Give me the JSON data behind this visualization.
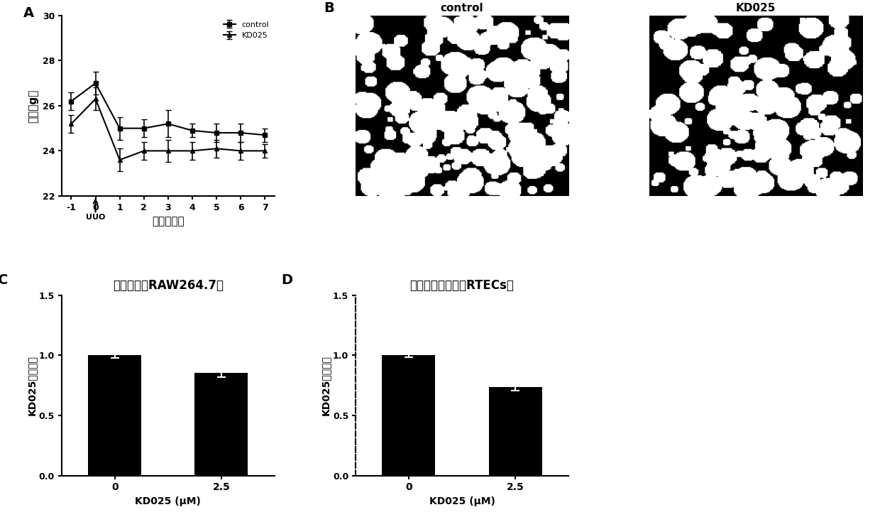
{
  "panel_A": {
    "label": "A",
    "x": [
      -1,
      0,
      1,
      2,
      3,
      4,
      5,
      6,
      7
    ],
    "control_y": [
      26.2,
      27.0,
      25.0,
      25.0,
      25.2,
      24.9,
      24.8,
      24.8,
      24.7
    ],
    "control_err": [
      0.4,
      0.5,
      0.5,
      0.4,
      0.6,
      0.3,
      0.4,
      0.4,
      0.3
    ],
    "kd025_y": [
      25.2,
      26.3,
      23.6,
      24.0,
      24.0,
      24.0,
      24.1,
      24.0,
      24.0
    ],
    "kd025_err": [
      0.4,
      0.5,
      0.5,
      0.4,
      0.5,
      0.4,
      0.4,
      0.4,
      0.3
    ],
    "ylim": [
      22,
      30
    ],
    "yticks": [
      22,
      24,
      26,
      28,
      30
    ],
    "xlabel": "时间（天）",
    "ylabel": "体重（g）",
    "legend_control": "control",
    "legend_kd025": "KD025",
    "uuo_label": "UUO"
  },
  "panel_C": {
    "label": "C",
    "title": "巨噢细胞（RAW264.7）",
    "categories": [
      "0",
      "2.5"
    ],
    "values": [
      1.0,
      0.855
    ],
    "errors": [
      0.02,
      0.035
    ],
    "bar_color": "#000000",
    "xlabel": "KD025 (μM)",
    "ylabel": "KD025相对活性",
    "ylim": [
      0,
      1.5
    ],
    "yticks": [
      0.0,
      0.5,
      1.0,
      1.5
    ]
  },
  "panel_D": {
    "label": "D",
    "title": "肾小管上皮细胞（RTECs）",
    "categories": [
      "0",
      "2.5"
    ],
    "values": [
      1.0,
      0.735
    ],
    "errors": [
      0.015,
      0.03
    ],
    "bar_color": "#000000",
    "xlabel": "KD025 (μM)",
    "ylabel": "KD025相对活性",
    "ylim": [
      0,
      1.5
    ],
    "yticks": [
      0.0,
      0.5,
      1.0,
      1.5
    ]
  },
  "background_color": "#ffffff",
  "panel_B_label_control": "control",
  "panel_B_label_kd025": "KD025"
}
